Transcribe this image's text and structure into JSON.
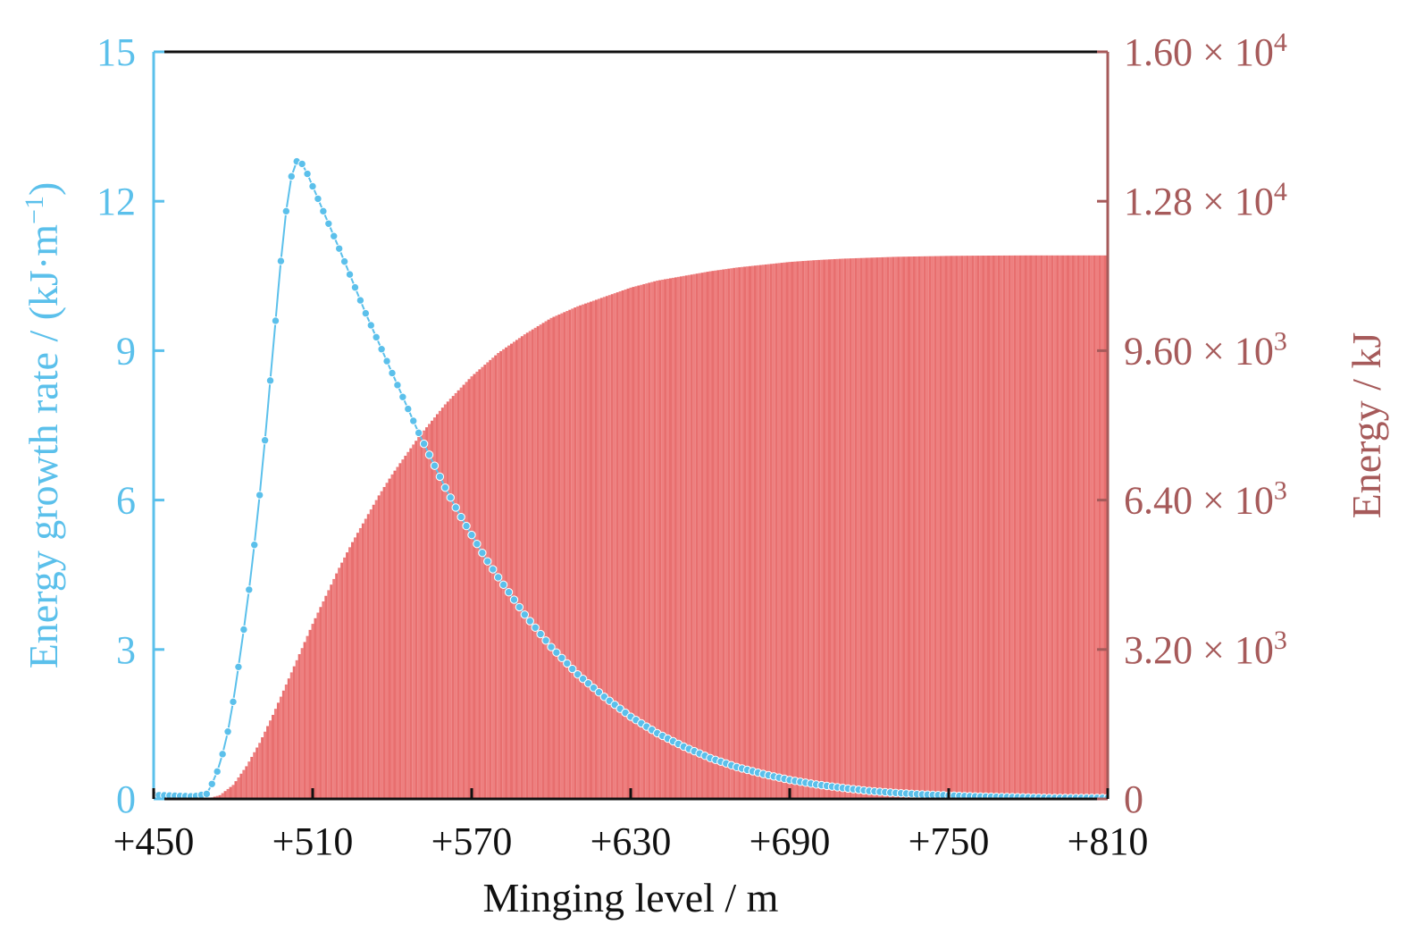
{
  "chart_data": {
    "type": "line+area",
    "xlabel": "Minging level / m",
    "ylabel_left": "Energy growth rate / (kJ·m",
    "ylabel_left_sup": "−1",
    "ylabel_left_close": ")",
    "ylabel_right": "Energy / kJ",
    "xlim": [
      450,
      810
    ],
    "ylim_left": [
      0,
      15
    ],
    "ylim_right": [
      0,
      16000
    ],
    "x_ticks": [
      "+450",
      "+510",
      "+570",
      "+630",
      "+690",
      "+750",
      "+810"
    ],
    "x_tick_values": [
      450,
      510,
      570,
      630,
      690,
      750,
      810
    ],
    "y_left_ticks": [
      "0",
      "3",
      "6",
      "9",
      "12",
      "15"
    ],
    "y_left_tick_values": [
      0,
      3,
      6,
      9,
      12,
      15
    ],
    "y_right_ticks": [
      {
        "value": 0,
        "mantissa": "0",
        "exp": ""
      },
      {
        "value": 3200,
        "mantissa": "3.20 × 10",
        "exp": "3"
      },
      {
        "value": 6400,
        "mantissa": "6.40 × 10",
        "exp": "3"
      },
      {
        "value": 9600,
        "mantissa": "9.60 × 10",
        "exp": "3"
      },
      {
        "value": 12800,
        "mantissa": "1.28 × 10",
        "exp": "4"
      },
      {
        "value": 16000,
        "mantissa": "1.60 × 10",
        "exp": "4"
      }
    ],
    "series": [
      {
        "axis": "left",
        "style": "line-markers",
        "color": "#5bc0eb",
        "x": [
          450,
          460,
          465,
          470,
          472,
          474,
          476,
          478,
          480,
          482,
          484,
          486,
          488,
          490,
          492,
          494,
          496,
          498,
          500,
          502,
          504,
          506,
          508,
          510,
          512,
          516,
          520,
          525,
          530,
          535,
          540,
          545,
          550,
          555,
          560,
          565,
          570,
          575,
          580,
          590,
          600,
          610,
          620,
          630,
          640,
          650,
          660,
          670,
          680,
          690,
          700,
          710,
          720,
          730,
          740,
          750,
          760,
          770,
          780,
          790,
          800,
          810
        ],
        "y": [
          0.08,
          0.06,
          0.05,
          0.1,
          0.3,
          0.55,
          0.9,
          1.35,
          1.95,
          2.65,
          3.4,
          4.2,
          5.1,
          6.1,
          7.2,
          8.4,
          9.6,
          10.8,
          11.8,
          12.5,
          12.8,
          12.75,
          12.55,
          12.3,
          12.05,
          11.55,
          11.05,
          10.4,
          9.75,
          9.15,
          8.55,
          7.95,
          7.35,
          6.8,
          6.25,
          5.75,
          5.3,
          4.85,
          4.45,
          3.7,
          3.05,
          2.5,
          2.05,
          1.65,
          1.32,
          1.05,
          0.82,
          0.64,
          0.5,
          0.38,
          0.29,
          0.22,
          0.16,
          0.12,
          0.09,
          0.07,
          0.05,
          0.04,
          0.03,
          0.02,
          0.02,
          0.02
        ]
      },
      {
        "axis": "right",
        "style": "filled-bars",
        "color": "#ee7f7f",
        "x": [
          450,
          470,
          475,
          480,
          485,
          490,
          495,
          500,
          505,
          510,
          515,
          520,
          525,
          530,
          535,
          540,
          545,
          550,
          555,
          560,
          565,
          570,
          580,
          590,
          600,
          610,
          620,
          630,
          640,
          650,
          660,
          670,
          680,
          690,
          700,
          710,
          720,
          730,
          740,
          750,
          760,
          780,
          800,
          810
        ],
        "y": [
          0,
          0,
          80,
          300,
          700,
          1200,
          1800,
          2450,
          3100,
          3750,
          4350,
          4950,
          5500,
          6000,
          6500,
          6950,
          7350,
          7750,
          8100,
          8450,
          8750,
          9050,
          9550,
          9950,
          10300,
          10550,
          10750,
          10950,
          11100,
          11200,
          11300,
          11380,
          11440,
          11500,
          11540,
          11570,
          11590,
          11610,
          11620,
          11630,
          11635,
          11640,
          11640,
          11640
        ]
      }
    ]
  }
}
